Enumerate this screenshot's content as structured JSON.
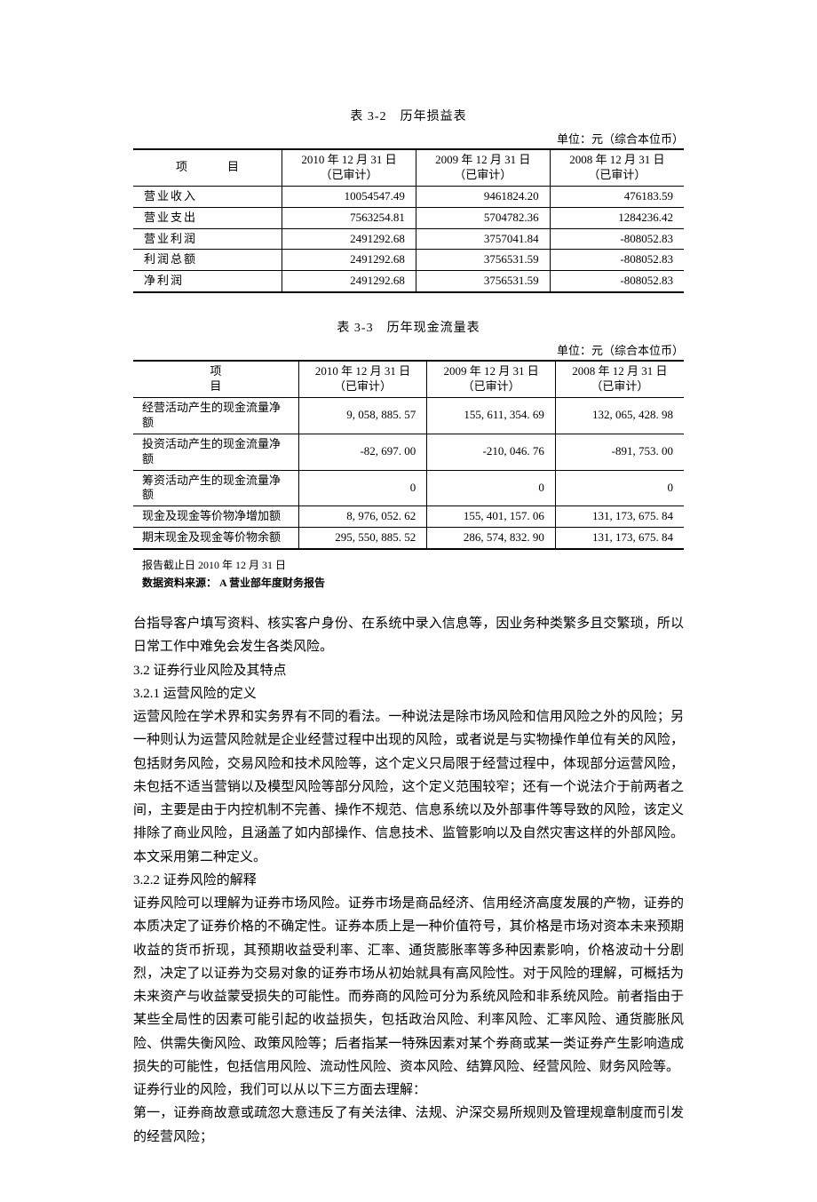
{
  "table1": {
    "caption": "表 3-2　历年损益表",
    "unit": "单位：元（综合本位币）",
    "header_item": "项　目",
    "columns": [
      {
        "line1": "2010 年 12 月 31 日",
        "line2": "（已审计）"
      },
      {
        "line1": "2009 年 12 月 31 日",
        "line2": "（已审计）"
      },
      {
        "line1": "2008 年 12 月 31 日",
        "line2": "（已审计）"
      }
    ],
    "rows": [
      {
        "label": "营业收入",
        "v": [
          "10054547.49",
          "9461824.20",
          "476183.59"
        ]
      },
      {
        "label": "营业支出",
        "v": [
          "7563254.81",
          "5704782.36",
          "1284236.42"
        ]
      },
      {
        "label": "营业利润",
        "v": [
          "2491292.68",
          "3757041.84",
          "-808052.83"
        ]
      },
      {
        "label": "利润总额",
        "v": [
          "2491292.68",
          "3756531.59",
          "-808052.83"
        ]
      },
      {
        "label": "净利润",
        "v": [
          "2491292.68",
          "3756531.59",
          "-808052.83"
        ]
      }
    ]
  },
  "table2": {
    "caption": "表 3-3　历年现金流量表",
    "unit": "单位：元（综合本位币）",
    "header_item": "项　　目",
    "columns": [
      {
        "line1": "2010 年 12 月 31 日",
        "line2": "（已审计）"
      },
      {
        "line1": "2009 年 12 月 31 日",
        "line2": "（已审计）"
      },
      {
        "line1": "2008 年 12 月 31 日",
        "line2": "（已审计）"
      }
    ],
    "rows": [
      {
        "label": "经营活动产生的现金流量净额",
        "v": [
          "9, 058, 885. 57",
          "155, 611, 354. 69",
          "132, 065, 428. 98"
        ]
      },
      {
        "label": "投资活动产生的现金流量净额",
        "v": [
          "-82, 697. 00",
          "-210, 046. 76",
          "-891, 753. 00"
        ]
      },
      {
        "label": "筹资活动产生的现金流量净额",
        "v": [
          "0",
          "0",
          "0"
        ]
      },
      {
        "label": "现金及现金等价物净增加额",
        "v": [
          "8, 976, 052. 62",
          "155, 401, 157. 06",
          "131, 173, 675. 84"
        ]
      },
      {
        "label": "期末现金及现金等价物余额",
        "v": [
          "295, 550, 885. 52",
          "286, 574, 832. 90",
          "131, 173, 675. 84"
        ]
      }
    ],
    "footnote1": "报告截止日 2010 年 12 月 31 日",
    "footnote2": "数据资料来源： A 营业部年度财务报告"
  },
  "body": {
    "p1": "台指导客户填写资料、核实客户身份、在系统中录入信息等，因业务种类繁多且交繁琐，所以日常工作中难免会发生各类风险。",
    "h32": "3.2 证券行业风险及其特点",
    "h321": "3.2.1 运营风险的定义",
    "p2": "运营风险在学术界和实务界有不同的看法。一种说法是除市场风险和信用风险之外的风险；另一种则认为运营风险就是企业经营过程中出现的风险，或者说是与实物操作单位有关的风险，包括财务风险，交易风险和技术风险等，这个定义只局限于经营过程中，体现部分运营风险，未包括不适当营销以及模型风险等部分风险，这个定义范围较窄；还有一个说法介于前两者之间，主要是由于内控机制不完善、操作不规范、信息系统以及外部事件等导致的风险，该定义排除了商业风险，且涵盖了如内部操作、信息技术、监管影响以及自然灾害这样的外部风险。本文采用第二种定义。",
    "h322": "3.2.2 证券风险的解释",
    "p3": "证券风险可以理解为证券市场风险。证券市场是商品经济、信用经济高度发展的产物，证券的本质决定了证券价格的不确定性。证券本质上是一种价值符号，其价格是市场对资本未来预期收益的货币折现，其预期收益受利率、汇率、通货膨胀率等多种因素影响，价格波动十分剧烈，决定了以证券为交易对象的证券市场从初始就具有高风险性。对于风险的理解，可概括为未来资产与收益蒙受损失的可能性。而券商的风险可分为系统风险和非系统风险。前者指由于某些全局性的因素可能引起的收益损失，包括政治风险、利率风险、汇率风险、通货膨胀风险、供需失衡风险、政策风险等；后者指某一特殊因素对某个券商或某一类证券产生影响造成损失的可能性，包括信用风险、流动性风险、资本风险、结算风险、经营风险、财务风险等。",
    "p4": "证券行业的风险，我们可以从以下三方面去理解：",
    "p5": "第一，证券商故意或疏忽大意违反了有关法律、法规、沪深交易所规则及管理规章制度而引发的经营风险；"
  }
}
